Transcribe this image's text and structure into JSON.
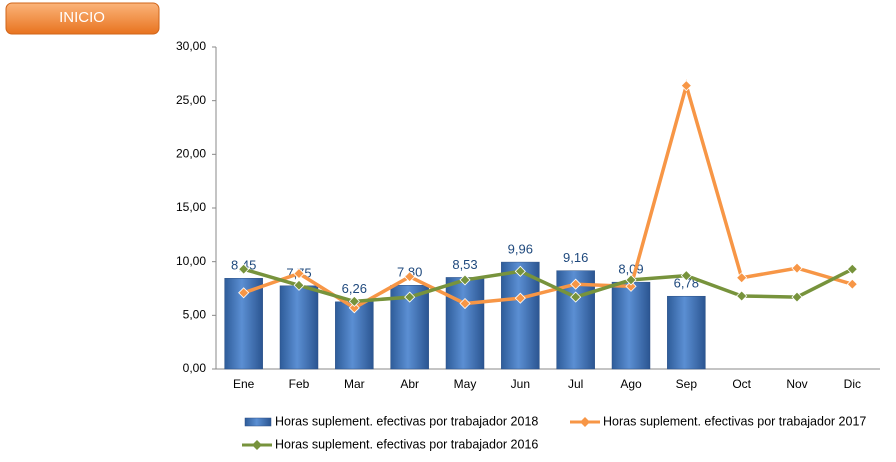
{
  "button": "INICIO",
  "chart_data": {
    "type": "combo",
    "categories": [
      "Ene",
      "Feb",
      "Mar",
      "Abr",
      "May",
      "Jun",
      "Jul",
      "Ago",
      "Sep",
      "Oct",
      "Nov",
      "Dic"
    ],
    "series": [
      {
        "name": "Horas suplement. efectivas por trabajador 2018",
        "type": "bar",
        "color": "#4f81bd",
        "values": [
          8.45,
          7.75,
          6.26,
          7.8,
          8.53,
          9.96,
          9.16,
          8.09,
          6.78,
          null,
          null,
          null
        ],
        "value_labels": [
          "8,45",
          "7,75",
          "6,26",
          "7,80",
          "8,53",
          "9,96",
          "9,16",
          "8,09",
          "6,78",
          null,
          null,
          null
        ]
      },
      {
        "name": "Horas suplement. efectivas por trabajador 2017",
        "type": "line",
        "color": "#f79646",
        "values": [
          7.1,
          8.9,
          5.7,
          8.6,
          6.1,
          6.6,
          7.9,
          7.7,
          26.4,
          8.5,
          9.4,
          7.9
        ]
      },
      {
        "name": "Horas suplement. efectivas por trabajador 2016",
        "type": "line",
        "color": "#77933c",
        "values": [
          9.3,
          7.8,
          6.3,
          6.7,
          8.3,
          9.1,
          6.7,
          8.3,
          8.7,
          6.8,
          6.7,
          9.3
        ]
      }
    ],
    "ylim": [
      0,
      30
    ],
    "yticks": [
      {
        "value": 0,
        "label": "0,00"
      },
      {
        "value": 5,
        "label": "5,00"
      },
      {
        "value": 10,
        "label": "10,00"
      },
      {
        "value": 15,
        "label": "15,00"
      },
      {
        "value": 20,
        "label": "20,00"
      },
      {
        "value": 25,
        "label": "25,00"
      },
      {
        "value": 30,
        "label": "30,00"
      }
    ],
    "grid": false
  }
}
